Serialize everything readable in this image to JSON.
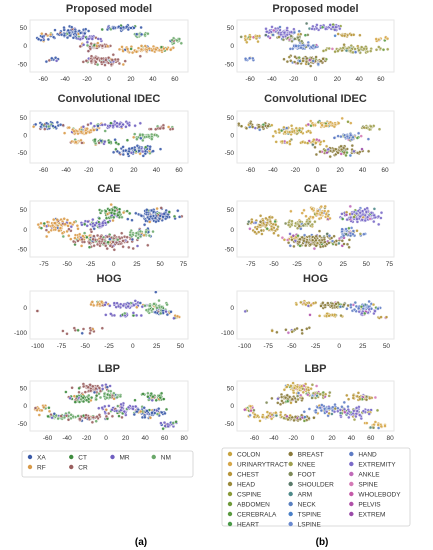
{
  "chart_data": {
    "type": "scatter",
    "panels": [
      {
        "title": "Proposed model",
        "xticks": [
          -60,
          -40,
          -20,
          0,
          20,
          40,
          60
        ],
        "yticks": [
          50,
          0,
          -50
        ],
        "xlim": [
          -72,
          72
        ],
        "ylim": [
          -72,
          70
        ]
      },
      {
        "title": "Convolutional IDEC",
        "xticks": [
          -60,
          -40,
          -20,
          0,
          20,
          40,
          60
        ],
        "yticks": [
          50,
          0,
          -50
        ],
        "xlim": [
          -72,
          68
        ],
        "ylim": [
          -80,
          68
        ]
      },
      {
        "title": "CAE",
        "xticks": [
          -75,
          -50,
          -25,
          0,
          25,
          50,
          75
        ],
        "yticks": [
          50,
          0,
          -50
        ],
        "xlim": [
          -90,
          80
        ],
        "ylim": [
          -70,
          72
        ]
      },
      {
        "title": "HOG",
        "xticks": [
          -100,
          -75,
          -50,
          -25,
          0,
          25,
          50
        ],
        "yticks": [
          0,
          -100
        ],
        "xlim": [
          -108,
          58
        ],
        "ylim": [
          -125,
          65
        ]
      },
      {
        "title": "LBP",
        "xticks": [
          -60,
          -40,
          -20,
          0,
          20,
          40,
          60,
          80
        ],
        "yticks": [
          50,
          0,
          -50
        ],
        "xlim": [
          -78,
          84
        ],
        "ylim": [
          -72,
          70
        ]
      }
    ],
    "legend_a": {
      "entries": [
        {
          "name": "XA",
          "color": "#3a5aa8"
        },
        {
          "name": "CT",
          "color": "#3e8c3e"
        },
        {
          "name": "MR",
          "color": "#6f5fc0"
        },
        {
          "name": "NM",
          "color": "#6aa86a"
        },
        {
          "name": "RF",
          "color": "#d99a48"
        },
        {
          "name": "CR",
          "color": "#9a5f5f"
        }
      ]
    },
    "legend_b": {
      "entries": [
        {
          "name": "COLON",
          "color": "#c8a440"
        },
        {
          "name": "BREAST",
          "color": "#8a7a3a"
        },
        {
          "name": "HAND",
          "color": "#5d7bc4"
        },
        {
          "name": "URINARYTRACT",
          "color": "#d6a74a"
        },
        {
          "name": "KNEE",
          "color": "#a0a050"
        },
        {
          "name": "EXTREMITY",
          "color": "#7a6ac8"
        },
        {
          "name": "CHEST",
          "color": "#b8963a"
        },
        {
          "name": "FOOT",
          "color": "#7e8a58"
        },
        {
          "name": "ANKLE",
          "color": "#c06ab8"
        },
        {
          "name": "HEAD",
          "color": "#9a8a3a"
        },
        {
          "name": "SHOULDER",
          "color": "#5a7a6a"
        },
        {
          "name": "SPINE",
          "color": "#d47ab6"
        },
        {
          "name": "CSPINE",
          "color": "#8a9a38"
        },
        {
          "name": "ARM",
          "color": "#4f8a8a"
        },
        {
          "name": "WHOLEBODY",
          "color": "#c45aa8"
        },
        {
          "name": "ABDOMEN",
          "color": "#6f9a3a"
        },
        {
          "name": "NECK",
          "color": "#5a80c0"
        },
        {
          "name": "PELVIS",
          "color": "#b050a8"
        },
        {
          "name": "CEREBRALA",
          "color": "#5a9a40"
        },
        {
          "name": "TSPINE",
          "color": "#4a80c8"
        },
        {
          "name": "EXTREM",
          "color": "#9a4aa8"
        },
        {
          "name": "HEART",
          "color": "#4a9a48"
        },
        {
          "name": "LSPINE",
          "color": "#6a8ad0"
        }
      ]
    }
  },
  "labels": {
    "a": "(a)",
    "b": "(b)"
  },
  "clusters": {
    "a": [
      [
        [
          -32,
          35,
          13,
          12,
          0,
          70
        ],
        [
          -58,
          22,
          8,
          10,
          0,
          20
        ],
        [
          -52,
          -38,
          4,
          6,
          0,
          8
        ],
        [
          -5,
          -40,
          16,
          10,
          5,
          90
        ],
        [
          -12,
          -2,
          12,
          7,
          5,
          50
        ],
        [
          35,
          -10,
          22,
          8,
          4,
          80
        ],
        [
          60,
          15,
          6,
          6,
          3,
          15
        ],
        [
          30,
          30,
          8,
          5,
          3,
          18
        ],
        [
          10,
          50,
          14,
          6,
          0,
          40
        ],
        [
          -20,
          20,
          10,
          8,
          2,
          30
        ]
      ],
      [
        [
          -55,
          25,
          12,
          8,
          0,
          40
        ],
        [
          -25,
          12,
          14,
          10,
          4,
          55
        ],
        [
          5,
          28,
          16,
          8,
          2,
          50
        ],
        [
          30,
          -5,
          10,
          7,
          3,
          40
        ],
        [
          20,
          -45,
          18,
          12,
          0,
          70
        ],
        [
          -30,
          -20,
          6,
          5,
          4,
          15
        ],
        [
          45,
          20,
          8,
          6,
          5,
          20
        ],
        [
          -5,
          -20,
          10,
          7,
          1,
          30
        ]
      ],
      [
        [
          -60,
          10,
          16,
          18,
          4,
          80
        ],
        [
          -30,
          -20,
          10,
          8,
          4,
          40
        ],
        [
          -5,
          -30,
          28,
          16,
          5,
          140
        ],
        [
          0,
          40,
          12,
          14,
          1,
          60
        ],
        [
          45,
          35,
          18,
          14,
          0,
          120
        ],
        [
          30,
          -10,
          12,
          10,
          3,
          50
        ],
        [
          -20,
          15,
          14,
          10,
          2,
          60
        ]
      ],
      [
        [
          -100,
          -15,
          2,
          2,
          5,
          2
        ],
        [
          -50,
          -90,
          26,
          14,
          5,
          14
        ],
        [
          -35,
          15,
          10,
          10,
          4,
          25
        ],
        [
          -5,
          10,
          16,
          12,
          2,
          50
        ],
        [
          25,
          0,
          14,
          18,
          3,
          50
        ],
        [
          30,
          -20,
          10,
          8,
          0,
          25
        ],
        [
          -10,
          -30,
          14,
          6,
          2,
          25
        ],
        [
          25,
          60,
          2,
          2,
          0,
          1
        ],
        [
          45,
          -40,
          5,
          5,
          4,
          6
        ]
      ],
      [
        [
          -65,
          -10,
          6,
          10,
          4,
          20
        ],
        [
          -45,
          -30,
          16,
          8,
          3,
          50
        ],
        [
          -15,
          -35,
          16,
          8,
          5,
          50
        ],
        [
          15,
          -10,
          16,
          12,
          2,
          60
        ],
        [
          45,
          -20,
          16,
          12,
          0,
          60
        ],
        [
          -15,
          50,
          14,
          12,
          5,
          60
        ],
        [
          -25,
          20,
          12,
          12,
          1,
          50
        ],
        [
          5,
          30,
          10,
          10,
          3,
          40
        ],
        [
          50,
          25,
          12,
          10,
          1,
          40
        ],
        [
          65,
          -55,
          10,
          8,
          2,
          20
        ]
      ]
    ],
    "b": [
      [
        [
          -32,
          35,
          13,
          12,
          5,
          70
        ],
        [
          -58,
          22,
          8,
          10,
          0,
          20
        ],
        [
          -5,
          -40,
          16,
          10,
          1,
          90
        ],
        [
          -12,
          -2,
          12,
          7,
          2,
          50
        ],
        [
          35,
          -10,
          22,
          8,
          4,
          80
        ],
        [
          60,
          15,
          6,
          6,
          3,
          15
        ],
        [
          30,
          30,
          8,
          5,
          6,
          18
        ],
        [
          10,
          50,
          14,
          6,
          5,
          40
        ],
        [
          -20,
          20,
          10,
          8,
          7,
          30
        ],
        [
          -60,
          -35,
          4,
          5,
          2,
          8
        ]
      ],
      [
        [
          -55,
          25,
          12,
          8,
          1,
          40
        ],
        [
          -25,
          12,
          14,
          10,
          0,
          55
        ],
        [
          5,
          28,
          16,
          8,
          3,
          50
        ],
        [
          30,
          -5,
          10,
          7,
          2,
          40
        ],
        [
          20,
          -45,
          18,
          12,
          1,
          70
        ],
        [
          -30,
          -20,
          6,
          5,
          0,
          15
        ],
        [
          45,
          20,
          8,
          6,
          4,
          20
        ],
        [
          -5,
          -20,
          10,
          7,
          0,
          30
        ]
      ],
      [
        [
          -60,
          10,
          16,
          18,
          6,
          80
        ],
        [
          -30,
          -20,
          10,
          8,
          0,
          40
        ],
        [
          -5,
          -30,
          28,
          16,
          1,
          140
        ],
        [
          0,
          40,
          12,
          14,
          3,
          60
        ],
        [
          45,
          35,
          18,
          14,
          5,
          120
        ],
        [
          30,
          -10,
          12,
          10,
          2,
          50
        ],
        [
          -20,
          15,
          14,
          10,
          4,
          60
        ]
      ],
      [
        [
          -100,
          -15,
          2,
          2,
          7,
          2
        ],
        [
          -50,
          -90,
          26,
          14,
          1,
          14
        ],
        [
          -35,
          15,
          10,
          10,
          0,
          25
        ],
        [
          -5,
          10,
          16,
          12,
          1,
          50
        ],
        [
          25,
          0,
          14,
          18,
          2,
          50
        ],
        [
          30,
          -20,
          10,
          8,
          5,
          25
        ],
        [
          -10,
          -30,
          14,
          6,
          0,
          25
        ],
        [
          45,
          -40,
          5,
          5,
          6,
          6
        ]
      ],
      [
        [
          -65,
          -10,
          6,
          10,
          3,
          20
        ],
        [
          -45,
          -30,
          16,
          8,
          0,
          50
        ],
        [
          -15,
          -35,
          16,
          8,
          1,
          50
        ],
        [
          15,
          -10,
          16,
          12,
          2,
          60
        ],
        [
          45,
          -20,
          16,
          12,
          5,
          60
        ],
        [
          -15,
          50,
          14,
          12,
          0,
          60
        ],
        [
          -25,
          20,
          12,
          12,
          1,
          50
        ],
        [
          5,
          30,
          10,
          10,
          4,
          40
        ],
        [
          50,
          25,
          12,
          10,
          6,
          40
        ],
        [
          65,
          -55,
          10,
          8,
          3,
          20
        ]
      ]
    ]
  }
}
